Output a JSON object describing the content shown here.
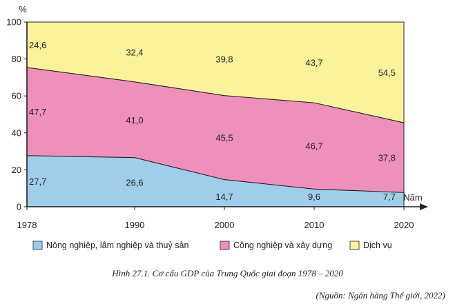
{
  "chart_data": {
    "type": "area",
    "stacked": true,
    "title": "Hình 27.1. Cơ cấu GDP của Trung Quốc giai đoạn 1978 – 2020",
    "source": "(Nguồn: Ngân hàng Thế giới, 2022)",
    "ylabel": "%",
    "xlabel": "Năm",
    "ylim": [
      0,
      100
    ],
    "yticks": [
      0,
      20,
      40,
      60,
      80,
      100
    ],
    "x": [
      1978,
      1990,
      2000,
      2010,
      2020
    ],
    "x_labels": [
      "1978",
      "1990",
      "2000",
      "2010",
      "2020"
    ],
    "series": [
      {
        "name": "Nông nghiệp, lâm nghiệp và thuỷ sản",
        "color": "#9fcdea",
        "values": [
          27.7,
          26.6,
          14.7,
          9.6,
          7.7
        ],
        "labels": [
          "27,7",
          "26,6",
          "14,7",
          "9,6",
          "7,7"
        ]
      },
      {
        "name": "Công nghiệp và xây dựng",
        "color": "#ef8fbc",
        "values": [
          47.7,
          41.0,
          45.5,
          46.7,
          37.8
        ],
        "labels": [
          "47,7",
          "41,0",
          "45,5",
          "46,7",
          "37,8"
        ]
      },
      {
        "name": "Dịch vụ",
        "color": "#fbf39b",
        "values": [
          24.6,
          32.4,
          39.8,
          43.7,
          54.5
        ],
        "labels": [
          "24,6",
          "32,4",
          "39,8",
          "43,7",
          "54,5"
        ]
      }
    ],
    "legend_position": "bottom"
  }
}
